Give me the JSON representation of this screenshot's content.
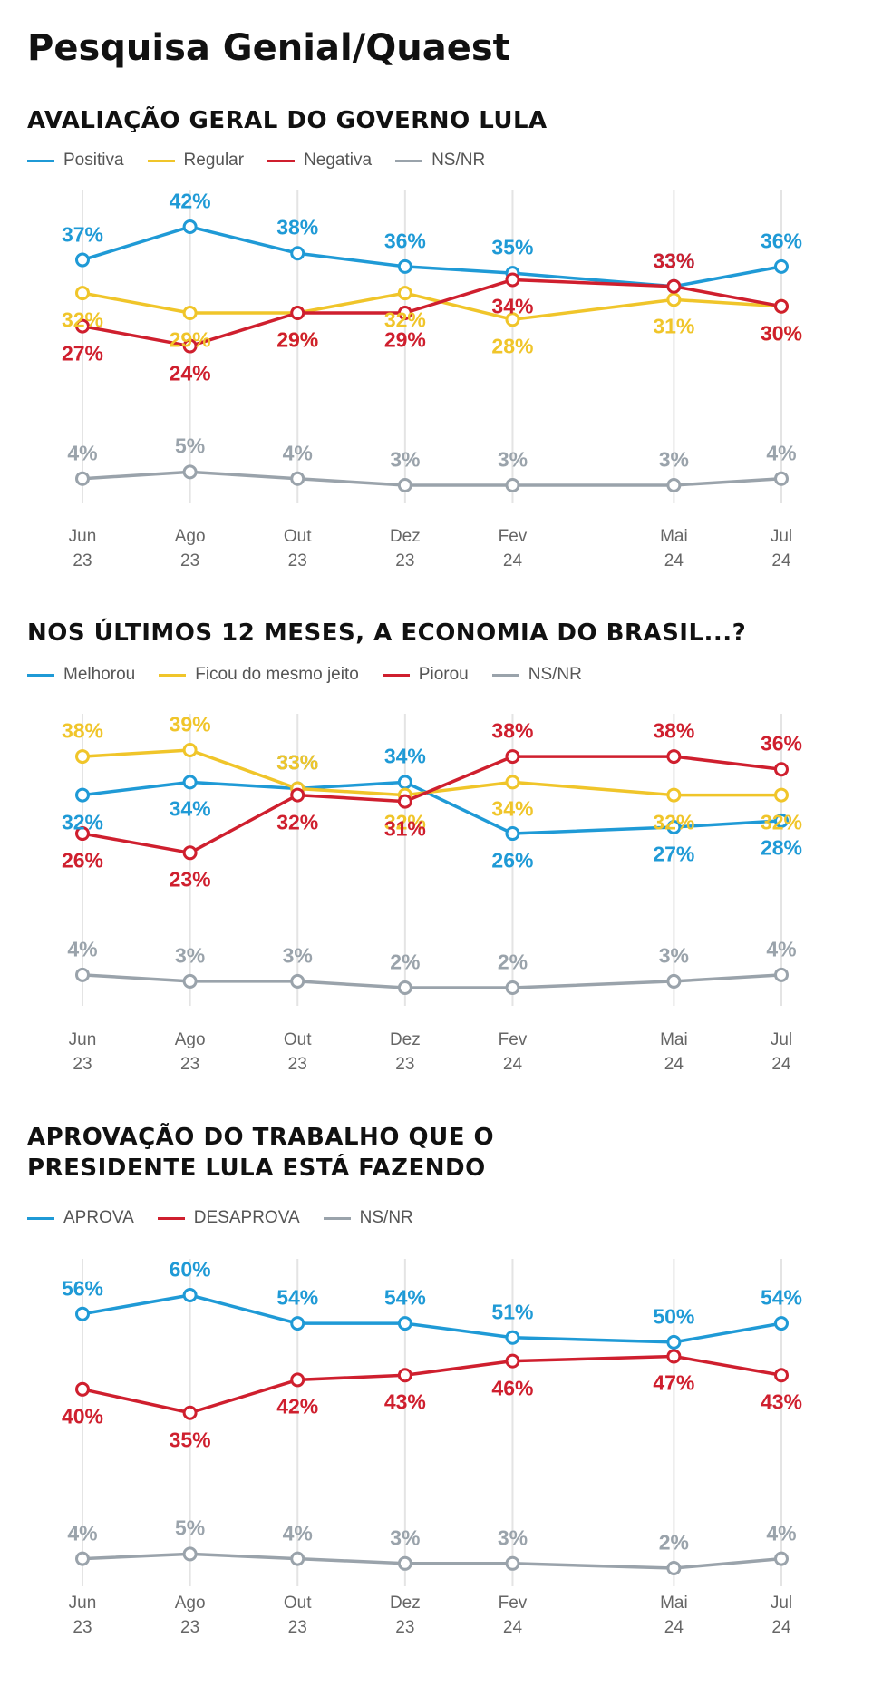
{
  "title": "Pesquisa Genial/Quaest",
  "chart_data": [
    {
      "type": "line",
      "title": "AVALIAÇÃO GERAL DO GOVERNO LULA",
      "x": [
        "2023-06",
        "2023-08",
        "2023-10",
        "2023-12",
        "2024-02",
        "2024-05",
        "2024-07"
      ],
      "xlim": [
        "2023-06",
        "2024-07"
      ],
      "xticks": [
        {
          "value": "2023-06",
          "label": "Jun 23"
        },
        {
          "value": "2023-08",
          "label": "Ago 23"
        },
        {
          "value": "2023-10",
          "label": "Out 23"
        },
        {
          "value": "2023-12",
          "label": "Dez 23"
        },
        {
          "value": "2024-02",
          "label": "Fev 24"
        },
        {
          "value": "2024-05",
          "label": "Mai 24"
        },
        {
          "value": "2024-07",
          "label": "Jul 24"
        }
      ],
      "series": [
        {
          "name": "Positiva",
          "color": "#1f9ad6",
          "values": [
            37,
            42,
            38,
            36,
            35,
            33,
            36
          ],
          "value_labels": [
            "37%",
            "42%",
            "38%",
            "36%",
            "35%",
            "33%",
            "36%"
          ]
        },
        {
          "name": "Regular",
          "color": "#f0c52a",
          "values": [
            32,
            29,
            29,
            32,
            28,
            31,
            30
          ],
          "value_labels": [
            "32%",
            "29%",
            "29%",
            "32%",
            "28%",
            "31%",
            "30%"
          ]
        },
        {
          "name": "Negativa",
          "color": "#cf1f2e",
          "values": [
            27,
            24,
            29,
            29,
            34,
            33,
            30
          ],
          "value_labels": [
            "27%",
            "24%",
            "29%",
            "29%",
            "34%",
            "33%",
            "30%"
          ]
        },
        {
          "name": "NS/NR",
          "color": "#9aa3ab",
          "values": [
            4,
            5,
            4,
            3,
            3,
            3,
            4
          ],
          "value_labels": [
            "4%",
            "5%",
            "4%",
            "3%",
            "3%",
            "3%",
            "4%"
          ]
        }
      ]
    },
    {
      "type": "line",
      "title": "NOS ÚLTIMOS 12 MESES, A ECONOMIA DO BRASIL...?",
      "x": [
        "2023-06",
        "2023-08",
        "2023-10",
        "2023-12",
        "2024-02",
        "2024-05",
        "2024-07"
      ],
      "xlim": [
        "2023-06",
        "2024-07"
      ],
      "xticks": [
        {
          "value": "2023-06",
          "label": "Jun 23"
        },
        {
          "value": "2023-08",
          "label": "Ago 23"
        },
        {
          "value": "2023-10",
          "label": "Out 23"
        },
        {
          "value": "2023-12",
          "label": "Dez 23"
        },
        {
          "value": "2024-02",
          "label": "Fev 24"
        },
        {
          "value": "2024-05",
          "label": "Mai 24"
        },
        {
          "value": "2024-07",
          "label": "Jul 24"
        }
      ],
      "series": [
        {
          "name": "Melhorou",
          "color": "#1f9ad6",
          "values": [
            32,
            34,
            33,
            34,
            26,
            27,
            28
          ],
          "value_labels": [
            "32%",
            "34%",
            "33%",
            "34%",
            "26%",
            "27%",
            "28%"
          ]
        },
        {
          "name": "Ficou do mesmo jeito",
          "color": "#f0c52a",
          "values": [
            38,
            39,
            33,
            32,
            34,
            32,
            32
          ],
          "value_labels": [
            "38%",
            "39%",
            "33%",
            "32%",
            "34%",
            "32%",
            "32%"
          ]
        },
        {
          "name": "Piorou",
          "color": "#cf1f2e",
          "values": [
            26,
            23,
            32,
            31,
            38,
            38,
            36
          ],
          "value_labels": [
            "26%",
            "23%",
            "32%",
            "31%",
            "38%",
            "38%",
            "36%"
          ]
        },
        {
          "name": "NS/NR",
          "color": "#9aa3ab",
          "values": [
            4,
            3,
            3,
            2,
            2,
            3,
            4
          ],
          "value_labels": [
            "4%",
            "3%",
            "3%",
            "2%",
            "2%",
            "3%",
            "4%"
          ]
        }
      ]
    },
    {
      "type": "line",
      "title": "APROVAÇÃO DO TRABALHO QUE O PRESIDENTE LULA ESTÁ FAZENDO",
      "x": [
        "2023-06",
        "2023-08",
        "2023-10",
        "2023-12",
        "2024-02",
        "2024-05",
        "2024-07"
      ],
      "xlim": [
        "2023-06",
        "2024-07"
      ],
      "xticks": [
        {
          "value": "2023-06",
          "label": "Jun 23"
        },
        {
          "value": "2023-08",
          "label": "Ago 23"
        },
        {
          "value": "2023-10",
          "label": "Out 23"
        },
        {
          "value": "2023-12",
          "label": "Dez 23"
        },
        {
          "value": "2024-02",
          "label": "Fev 24"
        },
        {
          "value": "2024-05",
          "label": "Mai 24"
        },
        {
          "value": "2024-07",
          "label": "Jul 24"
        }
      ],
      "series": [
        {
          "name": "APROVA",
          "color": "#1f9ad6",
          "values": [
            56,
            60,
            54,
            54,
            51,
            50,
            54
          ],
          "value_labels": [
            "56%",
            "60%",
            "54%",
            "54%",
            "51%",
            "50%",
            "54%"
          ]
        },
        {
          "name": "DESAPROVA",
          "color": "#cf1f2e",
          "values": [
            40,
            35,
            42,
            43,
            46,
            47,
            43
          ],
          "value_labels": [
            "40%",
            "35%",
            "42%",
            "43%",
            "46%",
            "47%",
            "43%"
          ]
        },
        {
          "name": "NS/NR",
          "color": "#9aa3ab",
          "values": [
            4,
            5,
            4,
            3,
            3,
            2,
            4
          ],
          "value_labels": [
            "4%",
            "5%",
            "4%",
            "3%",
            "3%",
            "2%",
            "4%"
          ]
        }
      ]
    }
  ]
}
